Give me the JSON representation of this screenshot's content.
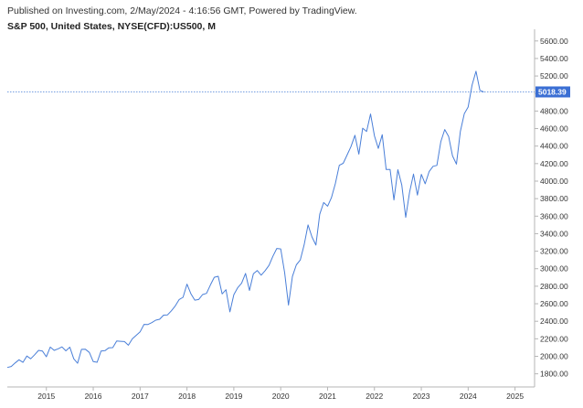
{
  "header": {
    "published": "Published on Investing.com, 2/May/2024 - 4:16:56 GMT, Powered by TradingView.",
    "symbol": "S&P 500, United States, NYSE(CFD):US500, M"
  },
  "colors": {
    "line": "#4a7fd8",
    "last_price_bg": "#3b6fd4",
    "axis": "#b5b5b5",
    "guide": "#4a7fd8"
  },
  "chart_data": {
    "type": "line",
    "title": "S&P 500, United States, NYSE(CFD):US500, M",
    "xlabel": "",
    "ylabel": "",
    "x_ticks": [
      "2015",
      "2016",
      "2017",
      "2018",
      "2019",
      "2020",
      "2021",
      "2022",
      "2023",
      "2024",
      "2025"
    ],
    "y_ticks": [
      "1800.00",
      "2000.00",
      "2200.00",
      "2400.00",
      "2600.00",
      "2800.00",
      "3000.00",
      "3200.00",
      "3400.00",
      "3600.00",
      "3800.00",
      "4000.00",
      "4200.00",
      "4400.00",
      "4600.00",
      "4800.00",
      "5000.00",
      "5200.00",
      "5400.00",
      "5600.00"
    ],
    "ylim": [
      1650,
      5650
    ],
    "xlim": [
      "2014-03",
      "2025-06"
    ],
    "grid": false,
    "last_value": "5018.39",
    "series": [
      {
        "x": [
          "2014-03",
          "2014-04",
          "2014-05",
          "2014-06",
          "2014-07",
          "2014-08",
          "2014-09",
          "2014-10",
          "2014-11",
          "2014-12",
          "2015-01",
          "2015-02",
          "2015-03",
          "2015-04",
          "2015-05",
          "2015-06",
          "2015-07",
          "2015-08",
          "2015-09",
          "2015-10",
          "2015-11",
          "2015-12",
          "2016-01",
          "2016-02",
          "2016-03",
          "2016-04",
          "2016-05",
          "2016-06",
          "2016-07",
          "2016-08",
          "2016-09",
          "2016-10",
          "2016-11",
          "2016-12",
          "2017-01",
          "2017-02",
          "2017-03",
          "2017-04",
          "2017-05",
          "2017-06",
          "2017-07",
          "2017-08",
          "2017-09",
          "2017-10",
          "2017-11",
          "2017-12",
          "2018-01",
          "2018-02",
          "2018-03",
          "2018-04",
          "2018-05",
          "2018-06",
          "2018-07",
          "2018-08",
          "2018-09",
          "2018-10",
          "2018-11",
          "2018-12",
          "2019-01",
          "2019-02",
          "2019-03",
          "2019-04",
          "2019-05",
          "2019-06",
          "2019-07",
          "2019-08",
          "2019-09",
          "2019-10",
          "2019-11",
          "2019-12",
          "2020-01",
          "2020-02",
          "2020-03",
          "2020-04",
          "2020-05",
          "2020-06",
          "2020-07",
          "2020-08",
          "2020-09",
          "2020-10",
          "2020-11",
          "2020-12",
          "2021-01",
          "2021-02",
          "2021-03",
          "2021-04",
          "2021-05",
          "2021-06",
          "2021-07",
          "2021-08",
          "2021-09",
          "2021-10",
          "2021-11",
          "2021-12",
          "2022-01",
          "2022-02",
          "2022-03",
          "2022-04",
          "2022-05",
          "2022-06",
          "2022-07",
          "2022-08",
          "2022-09",
          "2022-10",
          "2022-11",
          "2022-12",
          "2023-01",
          "2023-02",
          "2023-03",
          "2023-04",
          "2023-05",
          "2023-06",
          "2023-07",
          "2023-08",
          "2023-09",
          "2023-10",
          "2023-11",
          "2023-12",
          "2024-01",
          "2024-02",
          "2024-03",
          "2024-04",
          "2024-05"
        ],
        "values": [
          1872,
          1884,
          1924,
          1960,
          1931,
          2003,
          1972,
          2018,
          2068,
          2059,
          1995,
          2105,
          2068,
          2086,
          2107,
          2063,
          2104,
          1972,
          1920,
          2079,
          2080,
          2044,
          1940,
          1932,
          2060,
          2065,
          2097,
          2099,
          2174,
          2171,
          2168,
          2126,
          2199,
          2239,
          2279,
          2364,
          2363,
          2384,
          2412,
          2423,
          2470,
          2472,
          2519,
          2575,
          2648,
          2674,
          2824,
          2714,
          2641,
          2648,
          2705,
          2718,
          2816,
          2902,
          2914,
          2712,
          2760,
          2507,
          2704,
          2784,
          2834,
          2946,
          2752,
          2942,
          2980,
          2926,
          2977,
          3038,
          3141,
          3231,
          3226,
          2954,
          2585,
          2912,
          3044,
          3100,
          3271,
          3500,
          3363,
          3270,
          3622,
          3756,
          3714,
          3811,
          3973,
          4181,
          4204,
          4298,
          4395,
          4523,
          4308,
          4605,
          4567,
          4766,
          4516,
          4374,
          4530,
          4132,
          4132,
          3785,
          4130,
          3955,
          3586,
          3872,
          4080,
          3840,
          4077,
          3970,
          4109,
          4169,
          4180,
          4450,
          4589,
          4508,
          4288,
          4194,
          4568,
          4770,
          4846,
          5096,
          5254,
          5036,
          5018
        ]
      }
    ]
  }
}
